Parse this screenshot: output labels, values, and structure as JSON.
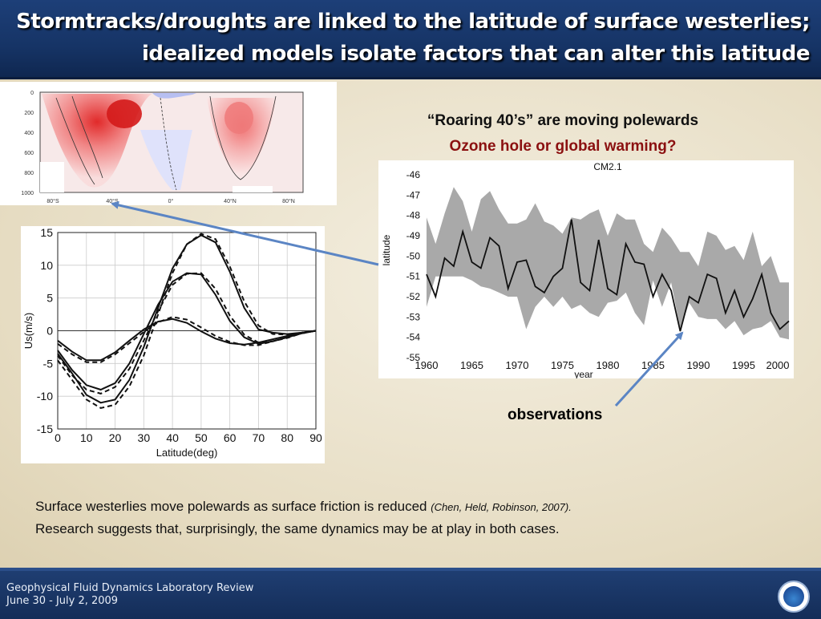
{
  "slide": {
    "title_line1": "Stormtracks/droughts are linked to the latitude of surface westerlies;",
    "title_line2": "idealized models isolate factors that can alter this latitude",
    "caption_line1": "“Roaring 40’s” are moving polewards",
    "caption_line2": "Ozone hole or global warming?",
    "observations_label": "observations",
    "body_line1": "Surface westerlies move polewards as surface friction is reduced",
    "body_ref": "(Chen, Held, Robinson, 2007).",
    "body_line2": "Research suggests that, surprisingly,  the same dynamics may be at play in both cases.",
    "footer_line1": "Geophysical Fluid Dynamics Laboratory Review",
    "footer_line2": "June 30 - July 2, 2009",
    "colors": {
      "header_bg": "#1d3f78",
      "caption_red": "#8b1010",
      "arrow": "#5b85c4"
    }
  },
  "contour_map": {
    "y_ticks": [
      "0",
      "200",
      "400",
      "600",
      "800",
      "1000"
    ],
    "x_ticks": [
      "80°S",
      "40°S",
      "0°",
      "40°N",
      "80°N"
    ]
  },
  "chart_data": [
    {
      "type": "line",
      "title": "",
      "xlabel": "Latitude(deg)",
      "ylabel": "Us(m/s)",
      "xlim": [
        0,
        90
      ],
      "ylim": [
        -15,
        15
      ],
      "x_ticks": [
        "0",
        "10",
        "20",
        "30",
        "40",
        "50",
        "60",
        "70",
        "80",
        "90"
      ],
      "y_ticks": [
        "15",
        "10",
        "5",
        "0",
        "-5",
        "-10",
        "-15"
      ],
      "x": [
        0,
        5,
        10,
        15,
        20,
        25,
        30,
        35,
        40,
        45,
        50,
        55,
        60,
        65,
        70,
        75,
        80,
        85,
        90
      ],
      "series": [
        {
          "style": "solid",
          "values": [
            -3.5,
            -6.5,
            -9.8,
            -11,
            -10.5,
            -7.5,
            -2.5,
            3.5,
            9.5,
            13.2,
            14.6,
            13.5,
            9,
            3.5,
            0.2,
            -0.3,
            -0.5,
            -0.3,
            0
          ]
        },
        {
          "style": "dashed",
          "values": [
            -4.5,
            -7.5,
            -10.5,
            -11.8,
            -11.3,
            -8.5,
            -3.8,
            2.5,
            8.8,
            13.2,
            14.8,
            14,
            9.8,
            4.5,
            0.8,
            -0.5,
            -0.6,
            -0.3,
            0
          ]
        },
        {
          "style": "solid",
          "values": [
            -3,
            -6,
            -8.3,
            -9,
            -8,
            -5,
            -0.5,
            4,
            7.5,
            8.8,
            8.6,
            5.5,
            1.5,
            -1,
            -2,
            -1.6,
            -1,
            -0.4,
            0
          ]
        },
        {
          "style": "dashed",
          "values": [
            -3.8,
            -6.8,
            -9,
            -9.6,
            -8.6,
            -5.8,
            -1.5,
            3,
            7,
            8.7,
            8.8,
            6.4,
            2.3,
            -0.6,
            -1.8,
            -1.6,
            -1.1,
            -0.4,
            0
          ]
        },
        {
          "style": "solid",
          "values": [
            -1.5,
            -3.2,
            -4.5,
            -4.5,
            -3.3,
            -1.5,
            0.2,
            1.4,
            1.8,
            1.2,
            -0.1,
            -1.2,
            -1.9,
            -2.1,
            -1.8,
            -1.3,
            -0.8,
            -0.3,
            0
          ]
        },
        {
          "style": "dashed",
          "values": [
            -2,
            -3.6,
            -4.8,
            -4.8,
            -3.6,
            -1.9,
            -0.2,
            1.3,
            2.1,
            1.7,
            0.5,
            -0.8,
            -1.7,
            -2.2,
            -2.2,
            -1.6,
            -1,
            -0.4,
            0
          ]
        }
      ]
    },
    {
      "type": "line",
      "title": "CM2.1",
      "xlabel": "year",
      "ylabel": "latitude",
      "xlim": [
        1960,
        2000
      ],
      "ylim": [
        -55,
        -46
      ],
      "x_ticks": [
        "1960",
        "1965",
        "1970",
        "1975",
        "1980",
        "1985",
        "1990",
        "1995",
        "2000"
      ],
      "y_ticks": [
        "-46",
        "-47",
        "-48",
        "-49",
        "-50",
        "-51",
        "-52",
        "-53",
        "-54",
        "-55"
      ],
      "x": [
        1960,
        1961,
        1962,
        1963,
        1964,
        1965,
        1966,
        1967,
        1968,
        1969,
        1970,
        1971,
        1972,
        1973,
        1974,
        1975,
        1976,
        1977,
        1978,
        1979,
        1980,
        1981,
        1982,
        1983,
        1984,
        1985,
        1986,
        1987,
        1988,
        1989,
        1990,
        1991,
        1992,
        1993,
        1994,
        1995,
        1996,
        1997,
        1998,
        1999,
        2000
      ],
      "series": [
        {
          "name": "observations",
          "style": "line",
          "values": [
            -50.9,
            -52,
            -50.1,
            -50.5,
            -48.8,
            -50.3,
            -50.6,
            -49.1,
            -49.5,
            -51.6,
            -50.3,
            -50.2,
            -51.5,
            -51.8,
            -51,
            -50.6,
            -48.2,
            -51.3,
            -51.7,
            -49.2,
            -51.6,
            -51.9,
            -49.4,
            -50.3,
            -50.4,
            -52,
            -50.9,
            -51.7,
            -53.7,
            -52,
            -52.3,
            -50.9,
            -51.1,
            -52.8,
            -51.7,
            -53,
            -52.1,
            -50.9,
            -52.8,
            -53.6,
            -53.2
          ]
        },
        {
          "name": "",
          "style": "band",
          "lower": [
            -52.5,
            -51,
            -51,
            -51,
            -51,
            -51.2,
            -51.5,
            -51.6,
            -51.8,
            -52,
            -52,
            -53.6,
            -52.5,
            -52,
            -52.5,
            -52,
            -52.6,
            -52.4,
            -52.8,
            -53,
            -52.3,
            -52.2,
            -51.8,
            -52.8,
            -53.4,
            -51.2,
            -52.5,
            -51.3,
            -53.6,
            -52.3,
            -53,
            -53.1,
            -53.1,
            -53.6,
            -53.2,
            -53.9,
            -53.6,
            -53.5,
            -53.2,
            -54,
            -54.1
          ],
          "upper": [
            -48.1,
            -49.4,
            -47.9,
            -46.6,
            -47.3,
            -48.8,
            -47.2,
            -46.8,
            -47.7,
            -48.4,
            -48.4,
            -48.2,
            -47.4,
            -48.3,
            -48.5,
            -48.9,
            -48.1,
            -48.2,
            -47.9,
            -47.7,
            -49,
            -47.9,
            -48.2,
            -48.2,
            -49.4,
            -49.8,
            -48.6,
            -49.1,
            -49.8,
            -49.8,
            -50.5,
            -48.8,
            -49,
            -49.7,
            -49.5,
            -50.2,
            -48.8,
            -50.5,
            -50,
            -51.3,
            -51.3
          ]
        }
      ]
    }
  ]
}
